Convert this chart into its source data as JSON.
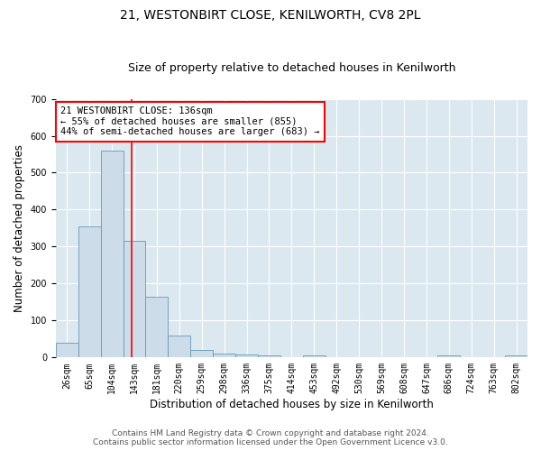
{
  "title": "21, WESTONBIRT CLOSE, KENILWORTH, CV8 2PL",
  "subtitle": "Size of property relative to detached houses in Kenilworth",
  "xlabel": "Distribution of detached houses by size in Kenilworth",
  "ylabel": "Number of detached properties",
  "footer_line1": "Contains HM Land Registry data © Crown copyright and database right 2024.",
  "footer_line2": "Contains public sector information licensed under the Open Government Licence v3.0.",
  "bin_labels": [
    "26sqm",
    "65sqm",
    "104sqm",
    "143sqm",
    "181sqm",
    "220sqm",
    "259sqm",
    "298sqm",
    "336sqm",
    "375sqm",
    "414sqm",
    "453sqm",
    "492sqm",
    "530sqm",
    "569sqm",
    "608sqm",
    "647sqm",
    "686sqm",
    "724sqm",
    "763sqm",
    "802sqm"
  ],
  "bar_values": [
    40,
    355,
    560,
    315,
    165,
    60,
    20,
    10,
    8,
    5,
    0,
    5,
    0,
    0,
    0,
    0,
    0,
    5,
    0,
    0,
    5
  ],
  "bar_color": "#ccdce8",
  "bar_edge_color": "#6699bb",
  "red_line_x": 2.87,
  "annotation_line1": "21 WESTONBIRT CLOSE: 136sqm",
  "annotation_line2": "← 55% of detached houses are smaller (855)",
  "annotation_line3": "44% of semi-detached houses are larger (683) →",
  "ylim": [
    0,
    700
  ],
  "yticks": [
    0,
    100,
    200,
    300,
    400,
    500,
    600,
    700
  ],
  "bg_color": "#ffffff",
  "plot_bg_color": "#dce8f0",
  "grid_color": "#ffffff",
  "title_fontsize": 10,
  "subtitle_fontsize": 9,
  "axis_label_fontsize": 8.5,
  "tick_fontsize": 7,
  "annotation_fontsize": 7.5,
  "footer_fontsize": 6.5
}
